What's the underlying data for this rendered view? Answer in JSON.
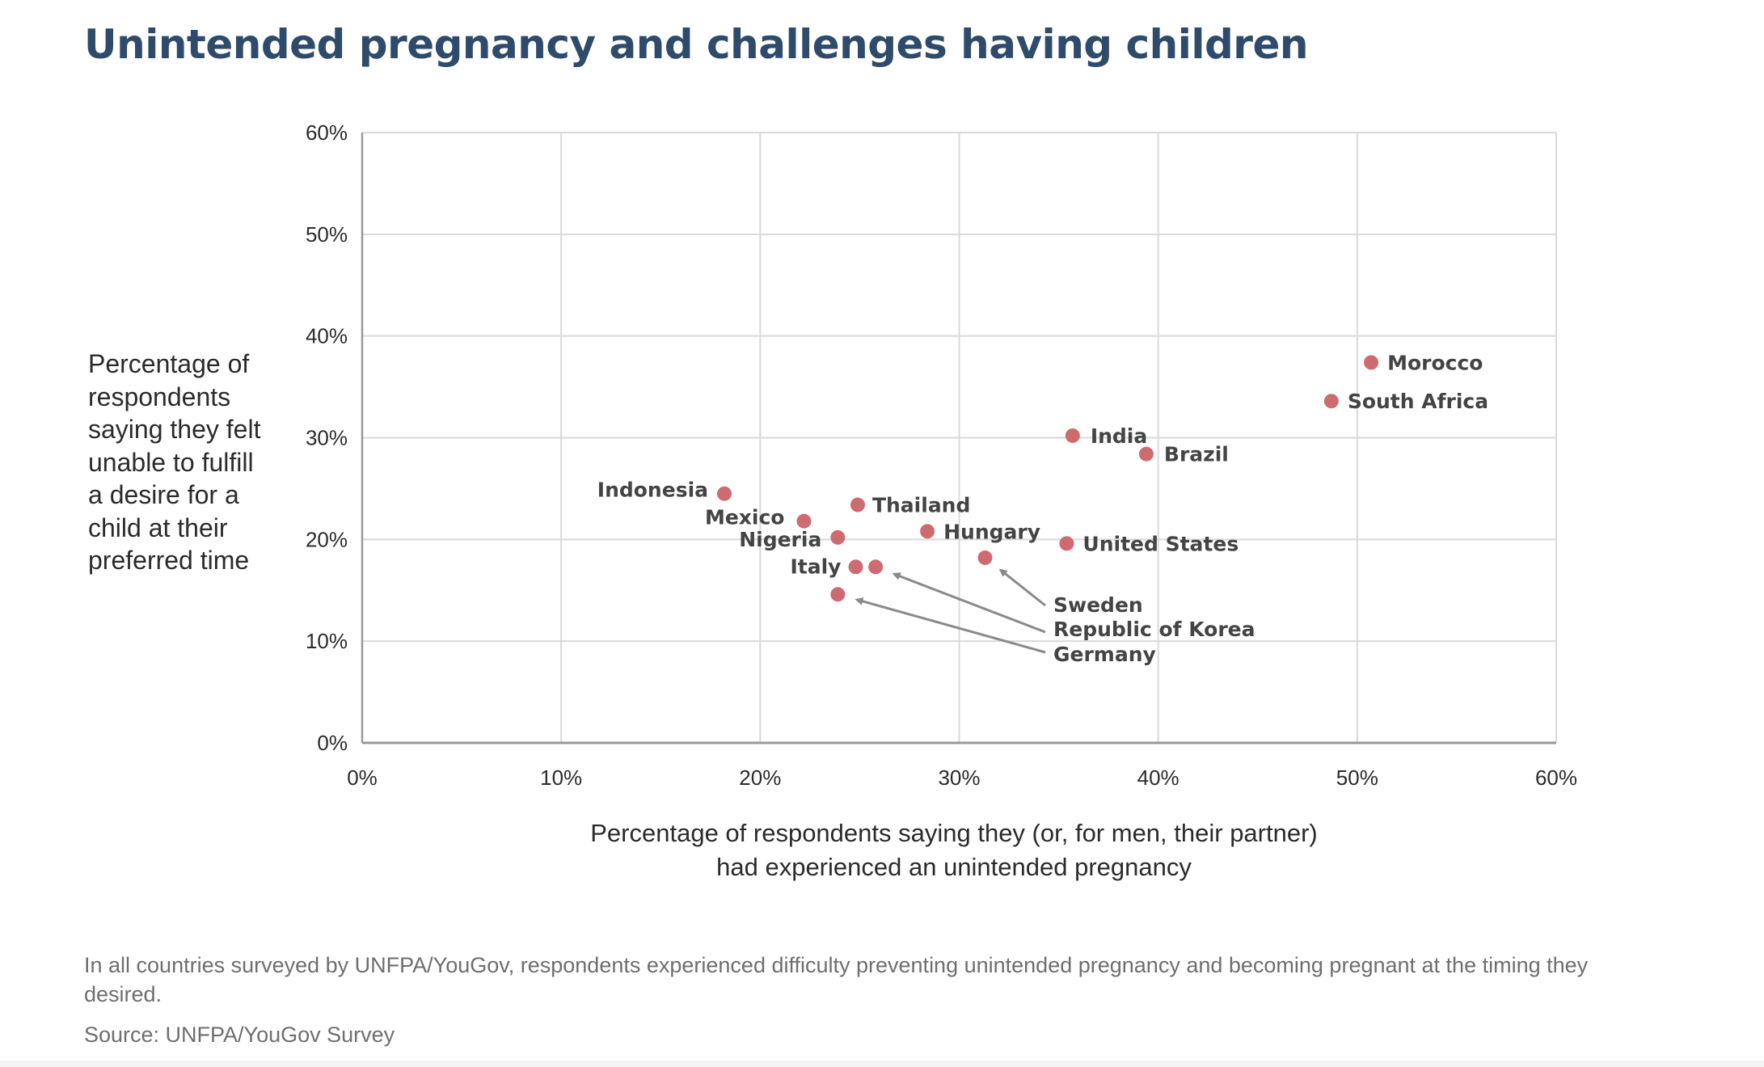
{
  "chart_data": {
    "type": "scatter",
    "title": "Unintended pregnancy and challenges having children",
    "xlabel": "Percentage of respondents saying they (or, for men, their partner) had experienced an unintended pregnancy",
    "xlabel_lines": [
      "Percentage of respondents saying they (or, for men, their partner)",
      "had experienced an unintended pregnancy"
    ],
    "ylabel": "Percentage of respondents saying they felt unable to fulfill a desire for a child at their preferred time",
    "ylabel_lines": [
      "Percentage of",
      "respondents",
      "saying they felt",
      "unable to fulfill",
      "a desire for a",
      "child at their",
      "preferred time"
    ],
    "xlim": [
      0,
      60
    ],
    "ylim": [
      0,
      60
    ],
    "x_ticks": [
      0,
      10,
      20,
      30,
      40,
      50,
      60
    ],
    "y_ticks": [
      0,
      10,
      20,
      30,
      40,
      50,
      60
    ],
    "x_tick_labels": [
      "0%",
      "10%",
      "20%",
      "30%",
      "40%",
      "50%",
      "60%"
    ],
    "y_tick_labels": [
      "0%",
      "10%",
      "20%",
      "30%",
      "40%",
      "50%",
      "60%"
    ],
    "grid": true,
    "marker_color": "#cd6b70",
    "grid_color": "#d9d9d9",
    "axis_color": "#999999",
    "title_color": "#2e4b6b",
    "points": [
      {
        "label": "Morocco",
        "x": 50.7,
        "y": 37.4
      },
      {
        "label": "South Africa",
        "x": 48.7,
        "y": 33.6
      },
      {
        "label": "India",
        "x": 35.7,
        "y": 30.2
      },
      {
        "label": "Brazil",
        "x": 39.4,
        "y": 28.4
      },
      {
        "label": "Indonesia",
        "x": 18.2,
        "y": 24.5
      },
      {
        "label": "Thailand",
        "x": 24.9,
        "y": 23.4
      },
      {
        "label": "Mexico",
        "x": 22.2,
        "y": 21.8
      },
      {
        "label": "Hungary",
        "x": 28.4,
        "y": 20.8
      },
      {
        "label": "Nigeria",
        "x": 23.9,
        "y": 20.2
      },
      {
        "label": "United States",
        "x": 35.4,
        "y": 19.6
      },
      {
        "label": "Sweden",
        "x": 31.3,
        "y": 18.2
      },
      {
        "label": "Italy",
        "x": 24.8,
        "y": 17.3
      },
      {
        "label": "Republic of Korea",
        "x": 25.8,
        "y": 17.3
      },
      {
        "label": "Germany",
        "x": 23.9,
        "y": 14.6
      }
    ]
  },
  "caption": "In all countries surveyed by UNFPA/YouGov, respondents experienced difficulty preventing unintended pregnancy and becoming pregnant at the timing they desired.",
  "source": "Source: UNFPA/YouGov Survey"
}
